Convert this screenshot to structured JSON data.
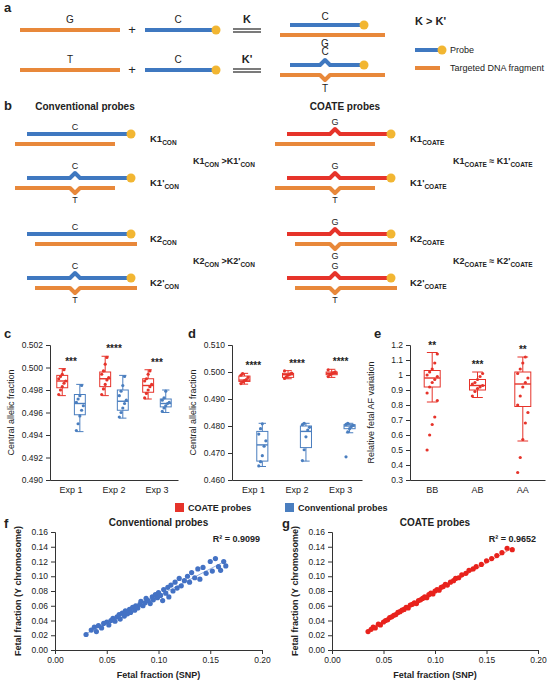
{
  "panel_labels": [
    "a",
    "b",
    "c",
    "d",
    "e",
    "f",
    "g"
  ],
  "diagram_a": {
    "rows": [
      {
        "target_base": "G",
        "probe_base": "C",
        "constant": "K",
        "mismatch": false
      },
      {
        "target_base": "T",
        "probe_base": "C",
        "constant": "K'",
        "mismatch": true
      }
    ],
    "plus": "+",
    "relation": "K > K'",
    "legend": [
      {
        "label": "Probe",
        "color": "#3f78c0"
      },
      {
        "label": "Targeted DNA fragment",
        "color": "#e8883a"
      }
    ]
  },
  "diagram_b": {
    "columns": [
      {
        "title": "Conventional probes",
        "color": "#3f78c0",
        "rows": [
          {
            "label": "K1",
            "sub": "CON",
            "probe_base": "C",
            "target_base": null,
            "probe_kink": false,
            "target_kink": false
          },
          {
            "label": "K1'",
            "sub": "CON",
            "probe_base": "C",
            "target_base": "T",
            "probe_kink": true,
            "target_kink": true
          },
          {
            "label": "K2",
            "sub": "CON",
            "probe_base": "C",
            "target_base": null,
            "probe_kink": false,
            "target_kink": false
          },
          {
            "label": "K2'",
            "sub": "CON",
            "probe_base": "C",
            "target_base": "T",
            "probe_kink": true,
            "target_kink": true
          }
        ],
        "relations": [
          [
            {
              "text": "K1"
            },
            {
              "text": "CON",
              "sub": true
            },
            {
              "text": " >K1'"
            },
            {
              "text": "CON",
              "sub": true
            }
          ],
          [
            {
              "text": "K2"
            },
            {
              "text": "CON",
              "sub": true
            },
            {
              "text": " >K2'"
            },
            {
              "text": "CON",
              "sub": true
            }
          ]
        ]
      },
      {
        "title": "COATE probes",
        "color": "#e6332a",
        "rows": [
          {
            "label": "K1",
            "sub": "COATE",
            "probe_base": "G",
            "target_base": null,
            "probe_kink": true,
            "target_kink": false
          },
          {
            "label": "K1'",
            "sub": "COATE",
            "probe_base": "G",
            "target_base": "T",
            "probe_kink": true,
            "target_kink": true
          },
          {
            "label": "K2",
            "sub": "COATE",
            "probe_base": "G",
            "target_base": "G",
            "probe_kink": true,
            "target_kink": true
          },
          {
            "label": "K2'",
            "sub": "COATE",
            "probe_base": "G",
            "target_base": "T",
            "probe_kink": true,
            "target_kink": true
          }
        ],
        "relations": [
          [
            {
              "text": "K1"
            },
            {
              "text": "COATE",
              "sub": true
            },
            {
              "text": " ≈ K1'"
            },
            {
              "text": "COATE",
              "sub": true
            }
          ],
          [
            {
              "text": "K2"
            },
            {
              "text": "COATE",
              "sub": true
            },
            {
              "text": " ≈ K2'"
            },
            {
              "text": "COATE",
              "sub": true
            }
          ]
        ]
      }
    ]
  },
  "legend": [
    {
      "name": "COATE probes",
      "color": "#e6332a"
    },
    {
      "name": "Conventional probes",
      "color": "#4a7ebf"
    }
  ],
  "chart_data": [
    {
      "type": "box",
      "y_label": "Central allelic fraction",
      "categories": [
        "Exp 1",
        "Exp 2",
        "Exp 3"
      ],
      "ylim": [
        0.49,
        0.502
      ],
      "yticks": [
        {
          "value": 0.49,
          "label": "0.490"
        },
        0.492,
        0.494,
        0.496,
        0.498,
        {
          "value": 0.5,
          "label": "0.500"
        },
        0.502
      ],
      "significance": [
        "***",
        "****",
        "***"
      ],
      "series": [
        {
          "color": "#e6332a",
          "boxes": [
            {
              "min": 0.4975,
              "q1": 0.4982,
              "median": 0.4988,
              "q3": 0.4993,
              "max": 0.4999,
              "points": [
                0.4976,
                0.498,
                0.4983,
                0.4986,
                0.4988,
                0.499,
                0.4992,
                0.4994,
                0.4998
              ]
            },
            {
              "min": 0.4975,
              "q1": 0.4983,
              "median": 0.499,
              "q3": 0.4996,
              "max": 0.501,
              "points": [
                0.4976,
                0.4981,
                0.4985,
                0.4989,
                0.4991,
                0.4994,
                0.4997,
                0.5003,
                0.5009
              ]
            },
            {
              "min": 0.4972,
              "q1": 0.4978,
              "median": 0.4984,
              "q3": 0.499,
              "max": 0.4998,
              "points": [
                0.4973,
                0.4977,
                0.498,
                0.4983,
                0.4985,
                0.4988,
                0.499,
                0.4994,
                0.4997
              ]
            }
          ]
        },
        {
          "color": "#4a7ebf",
          "boxes": [
            {
              "min": 0.4943,
              "q1": 0.4958,
              "median": 0.4968,
              "q3": 0.4976,
              "max": 0.4985,
              "points": [
                0.4944,
                0.495,
                0.4957,
                0.4962,
                0.4966,
                0.4969,
                0.4972,
                0.4975,
                0.4984
              ]
            },
            {
              "min": 0.4955,
              "q1": 0.4962,
              "median": 0.497,
              "q3": 0.498,
              "max": 0.4993,
              "points": [
                0.4956,
                0.496,
                0.4964,
                0.4968,
                0.4971,
                0.4975,
                0.4979,
                0.4984,
                0.4992
              ]
            },
            {
              "min": 0.496,
              "q1": 0.4965,
              "median": 0.4968,
              "q3": 0.4972,
              "max": 0.498,
              "points": [
                0.4961,
                0.4964,
                0.4966,
                0.4968,
                0.4969,
                0.4971,
                0.4973,
                0.4979
              ]
            }
          ]
        }
      ]
    },
    {
      "type": "box",
      "y_label": "Central allelic fraction",
      "categories": [
        "Exp 1",
        "Exp 2",
        "Exp 3"
      ],
      "ylim": [
        0.46,
        0.51
      ],
      "yticks": [
        {
          "value": 0.46,
          "label": "0.460"
        },
        {
          "value": 0.47,
          "label": "0.470"
        },
        {
          "value": 0.48,
          "label": "0.480"
        },
        {
          "value": 0.49,
          "label": "0.490"
        },
        {
          "value": 0.5,
          "label": "0.500"
        },
        {
          "value": 0.51,
          "label": "0.510"
        }
      ],
      "significance": [
        "****",
        "****",
        "****"
      ],
      "series": [
        {
          "color": "#e6332a",
          "boxes": [
            {
              "min": 0.4955,
              "q1": 0.4965,
              "median": 0.497,
              "q3": 0.4985,
              "max": 0.4995,
              "points": [
                0.4957,
                0.4963,
                0.4968,
                0.4972,
                0.498,
                0.4988,
                0.4994
              ]
            },
            {
              "min": 0.4975,
              "q1": 0.498,
              "median": 0.499,
              "q3": 0.4995,
              "max": 0.5005,
              "points": [
                0.4976,
                0.4982,
                0.4988,
                0.4992,
                0.4996,
                0.5004
              ]
            },
            {
              "min": 0.498,
              "q1": 0.499,
              "median": 0.4995,
              "q3": 0.5,
              "max": 0.501,
              "points": [
                0.4983,
                0.499,
                0.4994,
                0.4997,
                0.5001,
                0.5008
              ]
            }
          ]
        },
        {
          "color": "#4a7ebf",
          "boxes": [
            {
              "min": 0.465,
              "q1": 0.467,
              "median": 0.473,
              "q3": 0.478,
              "max": 0.481,
              "points": [
                0.4652,
                0.4668,
                0.469,
                0.4725,
                0.4745,
                0.477,
                0.479,
                0.4808
              ]
            },
            {
              "min": 0.467,
              "q1": 0.472,
              "median": 0.478,
              "q3": 0.48,
              "max": 0.481,
              "points": [
                0.4672,
                0.4712,
                0.476,
                0.4785,
                0.4795,
                0.4805,
                0.481
              ]
            },
            {
              "min": 0.4775,
              "q1": 0.479,
              "median": 0.48,
              "q3": 0.4805,
              "max": 0.481,
              "points": [
                0.4686,
                0.4778,
                0.479,
                0.4798,
                0.4802,
                0.4806,
                0.481
              ]
            }
          ]
        }
      ]
    },
    {
      "type": "box",
      "y_label": "Relative fetal AF variation",
      "categories": [
        "BB",
        "AB",
        "AA"
      ],
      "ylim": [
        0.3,
        1.2
      ],
      "yticks": [
        0.3,
        0.4,
        0.5,
        0.6,
        0.7,
        0.8,
        0.9,
        1,
        1.1,
        1.2
      ],
      "significance": [
        "**",
        "***",
        "**"
      ],
      "series": [
        {
          "color": "#e6332a",
          "boxes": [
            {
              "min": 0.82,
              "q1": 0.92,
              "median": 0.98,
              "q3": 1.03,
              "max": 1.15,
              "points": [
                0.5,
                0.6,
                0.67,
                0.72,
                0.83,
                0.88,
                0.92,
                0.95,
                0.97,
                0.99,
                1,
                1.02,
                1.04,
                1.08,
                1.14
              ]
            },
            {
              "min": 0.85,
              "q1": 0.9,
              "median": 0.93,
              "q3": 0.97,
              "max": 1.02,
              "points": [
                0.86,
                0.89,
                0.91,
                0.92,
                0.93,
                0.94,
                0.95,
                0.97,
                0.99,
                1.01
              ]
            },
            {
              "min": 0.56,
              "q1": 0.79,
              "median": 0.94,
              "q3": 1.02,
              "max": 1.12,
              "points": [
                0.35,
                0.45,
                0.57,
                0.68,
                0.75,
                0.8,
                0.86,
                0.92,
                0.95,
                0.98,
                1.01,
                1.04,
                1.08,
                1.12
              ]
            }
          ]
        }
      ]
    },
    {
      "type": "scatter",
      "title": "Conventional probes",
      "color": "#4472c4",
      "x_label": "Fetal fraction (SNP)",
      "y_label": "Fetal fraction (Y chromosome)",
      "annotations": [
        "R² = 0.9099"
      ],
      "xlim": [
        0,
        0.2
      ],
      "xticks": [
        {
          "value": 0,
          "label": "0.00"
        },
        0.05,
        {
          "value": 0.1,
          "label": "0.10"
        },
        0.15,
        {
          "value": 0.2,
          "label": "0.20"
        }
      ],
      "ylim": [
        0,
        0.16
      ],
      "yticks": [
        {
          "value": 0,
          "label": "0.00"
        },
        0.02,
        0.04,
        0.06,
        0.08,
        {
          "value": 0.1,
          "label": "0.10"
        },
        0.12,
        0.14,
        0.16
      ],
      "x": [
        0.03,
        0.035,
        0.038,
        0.04,
        0.042,
        0.045,
        0.047,
        0.05,
        0.052,
        0.054,
        0.056,
        0.058,
        0.06,
        0.062,
        0.063,
        0.065,
        0.067,
        0.068,
        0.07,
        0.072,
        0.073,
        0.075,
        0.077,
        0.078,
        0.08,
        0.082,
        0.083,
        0.085,
        0.087,
        0.088,
        0.09,
        0.092,
        0.094,
        0.095,
        0.097,
        0.099,
        0.1,
        0.102,
        0.104,
        0.105,
        0.107,
        0.109,
        0.11,
        0.112,
        0.114,
        0.116,
        0.118,
        0.12,
        0.122,
        0.125,
        0.128,
        0.13,
        0.132,
        0.135,
        0.138,
        0.14,
        0.143,
        0.146,
        0.15,
        0.152,
        0.155,
        0.158,
        0.16,
        0.163,
        0.165
      ],
      "values": [
        0.021,
        0.027,
        0.031,
        0.025,
        0.033,
        0.03,
        0.036,
        0.038,
        0.034,
        0.04,
        0.043,
        0.039,
        0.045,
        0.048,
        0.042,
        0.05,
        0.046,
        0.053,
        0.049,
        0.055,
        0.051,
        0.058,
        0.054,
        0.06,
        0.057,
        0.062,
        0.066,
        0.06,
        0.064,
        0.07,
        0.067,
        0.063,
        0.072,
        0.068,
        0.075,
        0.071,
        0.078,
        0.074,
        0.067,
        0.082,
        0.077,
        0.085,
        0.072,
        0.088,
        0.08,
        0.092,
        0.084,
        0.097,
        0.087,
        0.094,
        0.1,
        0.092,
        0.105,
        0.098,
        0.11,
        0.096,
        0.112,
        0.104,
        0.12,
        0.107,
        0.124,
        0.113,
        0.108,
        0.12,
        0.114
      ],
      "trendline": {
        "x": [
          0.03,
          0.165
        ],
        "values": [
          0.022,
          0.121
        ]
      }
    },
    {
      "type": "scatter",
      "title": "COATE probes",
      "color": "#e8221c",
      "x_label": "Fetal fraction (SNP)",
      "y_label": "Fetal fraction (Y chromosome)",
      "annotations": [
        "R² = 0.9652"
      ],
      "xlim": [
        0,
        0.2
      ],
      "xticks": [
        {
          "value": 0,
          "label": "0.00"
        },
        0.05,
        {
          "value": 0.1,
          "label": "0.10"
        },
        0.15,
        {
          "value": 0.2,
          "label": "0.20"
        }
      ],
      "ylim": [
        0,
        0.16
      ],
      "yticks": [
        {
          "value": 0,
          "label": "0.00"
        },
        0.02,
        0.04,
        0.06,
        0.08,
        {
          "value": 0.1,
          "label": "0.10"
        },
        0.12,
        0.14,
        0.16
      ],
      "x": [
        0.035,
        0.038,
        0.04,
        0.042,
        0.045,
        0.047,
        0.05,
        0.052,
        0.054,
        0.056,
        0.058,
        0.06,
        0.062,
        0.064,
        0.066,
        0.068,
        0.07,
        0.072,
        0.074,
        0.076,
        0.078,
        0.08,
        0.082,
        0.084,
        0.086,
        0.088,
        0.09,
        0.092,
        0.094,
        0.096,
        0.098,
        0.1,
        0.102,
        0.104,
        0.106,
        0.108,
        0.11,
        0.112,
        0.115,
        0.118,
        0.12,
        0.123,
        0.126,
        0.13,
        0.133,
        0.137,
        0.14,
        0.145,
        0.15,
        0.155,
        0.16,
        0.165,
        0.17,
        0.175
      ],
      "values": [
        0.025,
        0.028,
        0.031,
        0.03,
        0.035,
        0.034,
        0.038,
        0.04,
        0.041,
        0.044,
        0.045,
        0.047,
        0.048,
        0.051,
        0.052,
        0.054,
        0.055,
        0.058,
        0.057,
        0.061,
        0.062,
        0.064,
        0.063,
        0.067,
        0.068,
        0.07,
        0.072,
        0.071,
        0.075,
        0.077,
        0.076,
        0.08,
        0.082,
        0.081,
        0.085,
        0.086,
        0.089,
        0.088,
        0.092,
        0.094,
        0.097,
        0.098,
        0.102,
        0.104,
        0.108,
        0.11,
        0.113,
        0.116,
        0.121,
        0.124,
        0.128,
        0.132,
        0.138,
        0.136
      ],
      "trendline": {
        "x": [
          0.035,
          0.175
        ],
        "values": [
          0.026,
          0.138
        ]
      }
    }
  ]
}
